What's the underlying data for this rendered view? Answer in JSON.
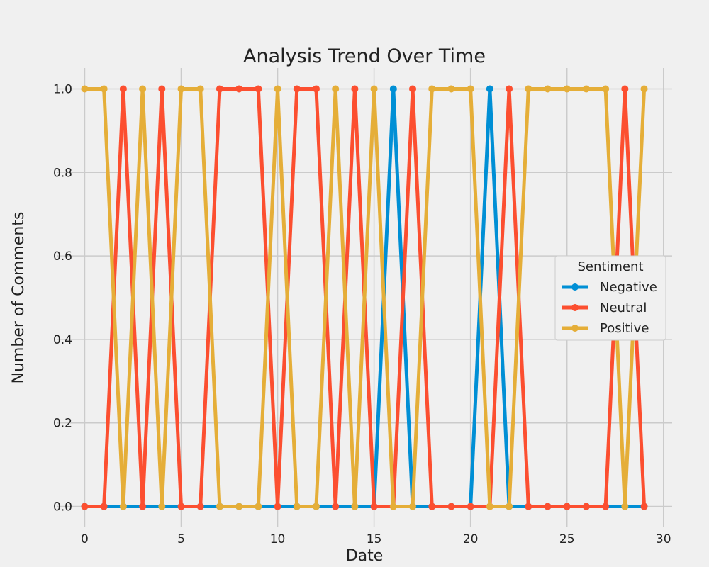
{
  "chart_data": {
    "type": "line",
    "title": "Analysis Trend Over Time",
    "xlabel": "Date",
    "ylabel": "Number of Comments",
    "xlim": [
      -1.45,
      30.45
    ],
    "ylim": [
      -0.05,
      1.05
    ],
    "xticks": [
      0,
      5,
      10,
      15,
      20,
      25,
      30
    ],
    "yticks": [
      0.0,
      0.2,
      0.4,
      0.6,
      0.8,
      1.0
    ],
    "ytick_labels": [
      "0.0",
      "0.2",
      "0.4",
      "0.6",
      "0.8",
      "1.0"
    ],
    "grid": true,
    "legend": {
      "title": "Sentiment",
      "placement": "center-right"
    },
    "x": [
      0,
      1,
      2,
      3,
      4,
      5,
      6,
      7,
      8,
      9,
      10,
      11,
      12,
      13,
      14,
      15,
      16,
      17,
      18,
      19,
      20,
      21,
      22,
      23,
      24,
      25,
      26,
      27,
      28,
      29
    ],
    "series": [
      {
        "name": "Negative",
        "color": "#008fd5",
        "values": [
          0,
          0,
          0,
          0,
          0,
          0,
          0,
          0,
          0,
          0,
          0,
          0,
          0,
          0,
          0,
          0,
          1,
          0,
          0,
          0,
          0,
          1,
          0,
          0,
          0,
          0,
          0,
          0,
          0,
          0
        ]
      },
      {
        "name": "Neutral",
        "color": "#fc4f30",
        "values": [
          0,
          0,
          1,
          0,
          1,
          0,
          0,
          1,
          1,
          1,
          0,
          1,
          1,
          0,
          1,
          0,
          0,
          1,
          0,
          0,
          0,
          0,
          1,
          0,
          0,
          0,
          0,
          0,
          1,
          0
        ]
      },
      {
        "name": "Positive",
        "color": "#e5ae38",
        "values": [
          1,
          1,
          0,
          1,
          0,
          1,
          1,
          0,
          0,
          0,
          1,
          0,
          0,
          1,
          0,
          1,
          0,
          0,
          1,
          1,
          1,
          0,
          0,
          1,
          1,
          1,
          1,
          1,
          0,
          1
        ]
      }
    ]
  }
}
